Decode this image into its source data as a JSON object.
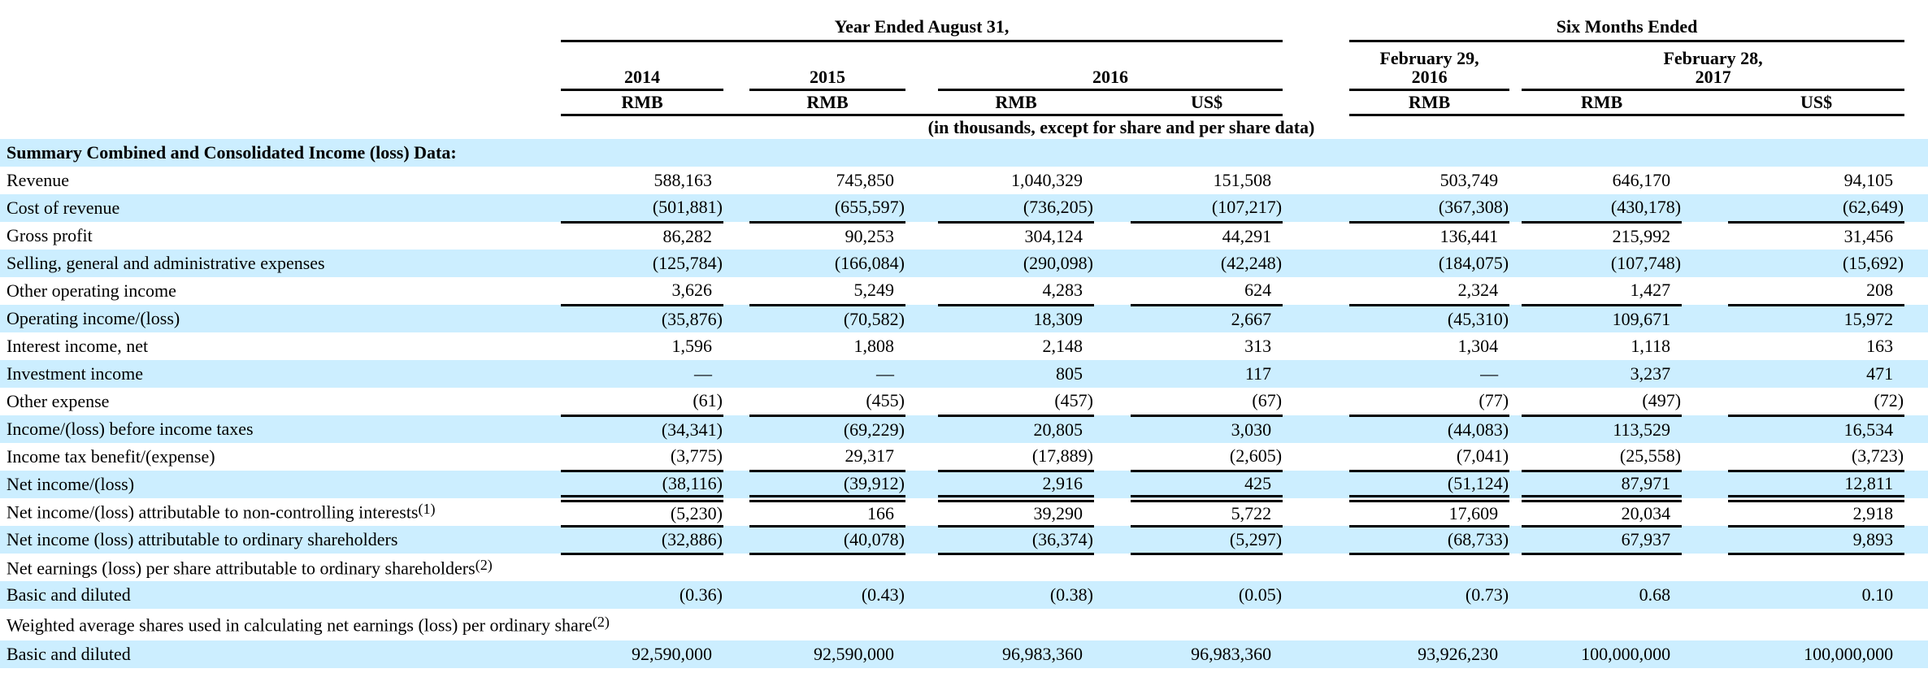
{
  "table": {
    "group_headers": [
      {
        "label": "Year Ended August 31,"
      },
      {
        "label": "Six Months Ended"
      }
    ],
    "period_headers": [
      "2014",
      "2015",
      "2016",
      "February 29,\n2016",
      "February 28,\n2017"
    ],
    "currency_headers": [
      "RMB",
      "RMB",
      "RMB",
      "US$",
      "RMB",
      "RMB",
      "US$"
    ],
    "units_note": "(in thousands, except for share and per share data)",
    "highlight_color": "#cceeff",
    "rows": [
      {
        "label": "Summary Combined and Consolidated Income (loss) Data:",
        "bold": true,
        "shaded": true,
        "values": null,
        "rule": null
      },
      {
        "label": "Revenue",
        "shaded": false,
        "values": [
          "588,163",
          "745,850",
          "1,040,329",
          "151,508",
          "503,749",
          "646,170",
          "94,105"
        ],
        "rule": null
      },
      {
        "label": "Cost of revenue",
        "shaded": true,
        "values": [
          "(501,881)",
          "(655,597)",
          "(736,205)",
          "(107,217)",
          "(367,308)",
          "(430,178)",
          "(62,649)"
        ],
        "rule": "single"
      },
      {
        "label": "Gross profit",
        "shaded": false,
        "values": [
          "86,282",
          "90,253",
          "304,124",
          "44,291",
          "136,441",
          "215,992",
          "31,456"
        ],
        "rule": null
      },
      {
        "label": "Selling, general and administrative expenses",
        "shaded": true,
        "values": [
          "(125,784)",
          "(166,084)",
          "(290,098)",
          "(42,248)",
          "(184,075)",
          "(107,748)",
          "(15,692)"
        ],
        "rule": null
      },
      {
        "label": "Other operating income",
        "shaded": false,
        "values": [
          "3,626",
          "5,249",
          "4,283",
          "624",
          "2,324",
          "1,427",
          "208"
        ],
        "rule": "single"
      },
      {
        "label": "Operating income/(loss)",
        "shaded": true,
        "values": [
          "(35,876)",
          "(70,582)",
          "18,309",
          "2,667",
          "(45,310)",
          "109,671",
          "15,972"
        ],
        "rule": null
      },
      {
        "label": "Interest income, net",
        "shaded": false,
        "values": [
          "1,596",
          "1,808",
          "2,148",
          "313",
          "1,304",
          "1,118",
          "163"
        ],
        "rule": null
      },
      {
        "label": "Investment income",
        "shaded": true,
        "values": [
          "—",
          "—",
          "805",
          "117",
          "—",
          "3,237",
          "471"
        ],
        "rule": null
      },
      {
        "label": "Other expense",
        "shaded": false,
        "values": [
          "(61)",
          "(455)",
          "(457)",
          "(67)",
          "(77)",
          "(497)",
          "(72)"
        ],
        "rule": "single"
      },
      {
        "label": "Income/(loss) before income taxes",
        "shaded": true,
        "values": [
          "(34,341)",
          "(69,229)",
          "20,805",
          "3,030",
          "(44,083)",
          "113,529",
          "16,534"
        ],
        "rule": null
      },
      {
        "label": "Income tax benefit/(expense)",
        "shaded": false,
        "values": [
          "(3,775)",
          "29,317",
          "(17,889)",
          "(2,605)",
          "(7,041)",
          "(25,558)",
          "(3,723)"
        ],
        "rule": "single"
      },
      {
        "label": "Net income/(loss)",
        "shaded": true,
        "values": [
          "(38,116)",
          "(39,912)",
          "2,916",
          "425",
          "(51,124)",
          "87,971",
          "12,811"
        ],
        "rule": "double"
      },
      {
        "label": "Net income/(loss) attributable to non-controlling interests",
        "footnote": "(1)",
        "shaded": false,
        "values": [
          "(5,230)",
          "166",
          "39,290",
          "5,722",
          "17,609",
          "20,034",
          "2,918"
        ],
        "rule": "single"
      },
      {
        "label": "Net income (loss) attributable to ordinary shareholders",
        "shaded": true,
        "values": [
          "(32,886)",
          "(40,078)",
          "(36,374)",
          "(5,297)",
          "(68,733)",
          "67,937",
          "9,893"
        ],
        "rule": "single"
      },
      {
        "label": "Net earnings (loss) per share attributable to ordinary shareholders",
        "footnote": "(2)",
        "shaded": false,
        "values": null,
        "rule": null
      },
      {
        "label": "Basic and diluted",
        "shaded": true,
        "values": [
          "(0.36)",
          "(0.43)",
          "(0.38)",
          "(0.05)",
          "(0.73)",
          "0.68",
          "0.10"
        ],
        "rule": null
      },
      {
        "label": "Weighted average shares used in calculating net earnings (loss) per ordinary share",
        "footnote": "(2)",
        "shaded": false,
        "values": null,
        "rule": null,
        "hang": true
      },
      {
        "label": "Basic and diluted",
        "shaded": true,
        "values": [
          "92,590,000",
          "92,590,000",
          "96,983,360",
          "96,983,360",
          "93,926,230",
          "100,000,000",
          "100,000,000"
        ],
        "rule": null
      }
    ]
  }
}
